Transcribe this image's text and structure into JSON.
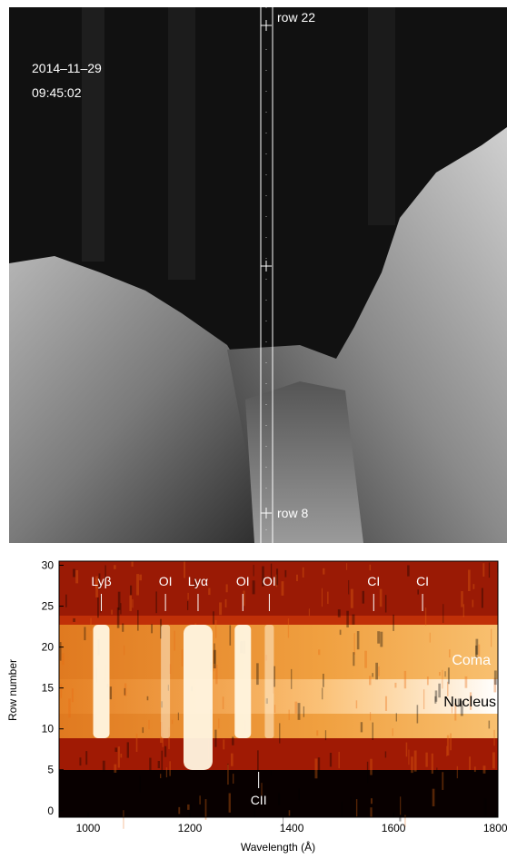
{
  "image": {
    "date": "2014–11–29",
    "time": "09:45:02",
    "slit_labels": [
      "row 22",
      "row 8"
    ]
  },
  "chart_data": {
    "type": "heatmap",
    "xlabel": "Wavelength (Å)",
    "ylabel": "Row number",
    "xlim": [
      943,
      1805
    ],
    "ylim": [
      -0.8,
      30.5
    ],
    "xticks": [
      1000,
      1200,
      1400,
      1600,
      1800
    ],
    "yticks": [
      0,
      5,
      10,
      15,
      20,
      25,
      30
    ],
    "lines": [
      {
        "name": "Lyβ",
        "wavelength": 1026,
        "position": "top"
      },
      {
        "name": "OI",
        "wavelength": 1152,
        "position": "top"
      },
      {
        "name": "Lyα",
        "wavelength": 1216,
        "position": "top"
      },
      {
        "name": "OI",
        "wavelength": 1304,
        "position": "top"
      },
      {
        "name": "OI",
        "wavelength": 1356,
        "position": "top"
      },
      {
        "name": "CI",
        "wavelength": 1561,
        "position": "top"
      },
      {
        "name": "CI",
        "wavelength": 1657,
        "position": "top"
      },
      {
        "name": "CII",
        "wavelength": 1335,
        "position": "bottom"
      }
    ],
    "annotations": [
      "Coma",
      "Nucleus"
    ]
  }
}
